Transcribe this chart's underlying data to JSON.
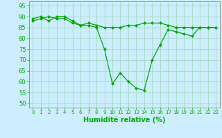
{
  "xlabel": "Humidité relative (%)",
  "background_color": "#cceeff",
  "grid_color": "#aaddcc",
  "line_color": "#00aa00",
  "marker_color": "#00aa00",
  "xlim": [
    -0.5,
    23.5
  ],
  "ylim": [
    48,
    97
  ],
  "yticks": [
    50,
    55,
    60,
    65,
    70,
    75,
    80,
    85,
    90,
    95
  ],
  "xticks": [
    0,
    1,
    2,
    3,
    4,
    5,
    6,
    7,
    8,
    9,
    10,
    11,
    12,
    13,
    14,
    15,
    16,
    17,
    18,
    19,
    20,
    21,
    22,
    23
  ],
  "xtick_labels": [
    "0",
    "1",
    "2",
    "3",
    "4",
    "5",
    "6",
    "7",
    "8",
    "9",
    "10",
    "11",
    "12",
    "13",
    "14",
    "15",
    "16",
    "17",
    "18",
    "19",
    "20",
    "21",
    "22",
    "23"
  ],
  "series1": [
    89,
    90,
    88,
    90,
    90,
    88,
    86,
    87,
    86,
    85,
    85,
    85,
    86,
    86,
    87,
    87,
    87,
    86,
    85,
    85,
    85,
    85,
    85,
    85
  ],
  "series2": [
    88,
    89,
    90,
    89,
    89,
    87,
    86,
    86,
    85,
    75,
    59,
    64,
    60,
    57,
    56,
    70,
    77,
    84,
    83,
    82,
    81,
    85,
    85,
    85
  ]
}
